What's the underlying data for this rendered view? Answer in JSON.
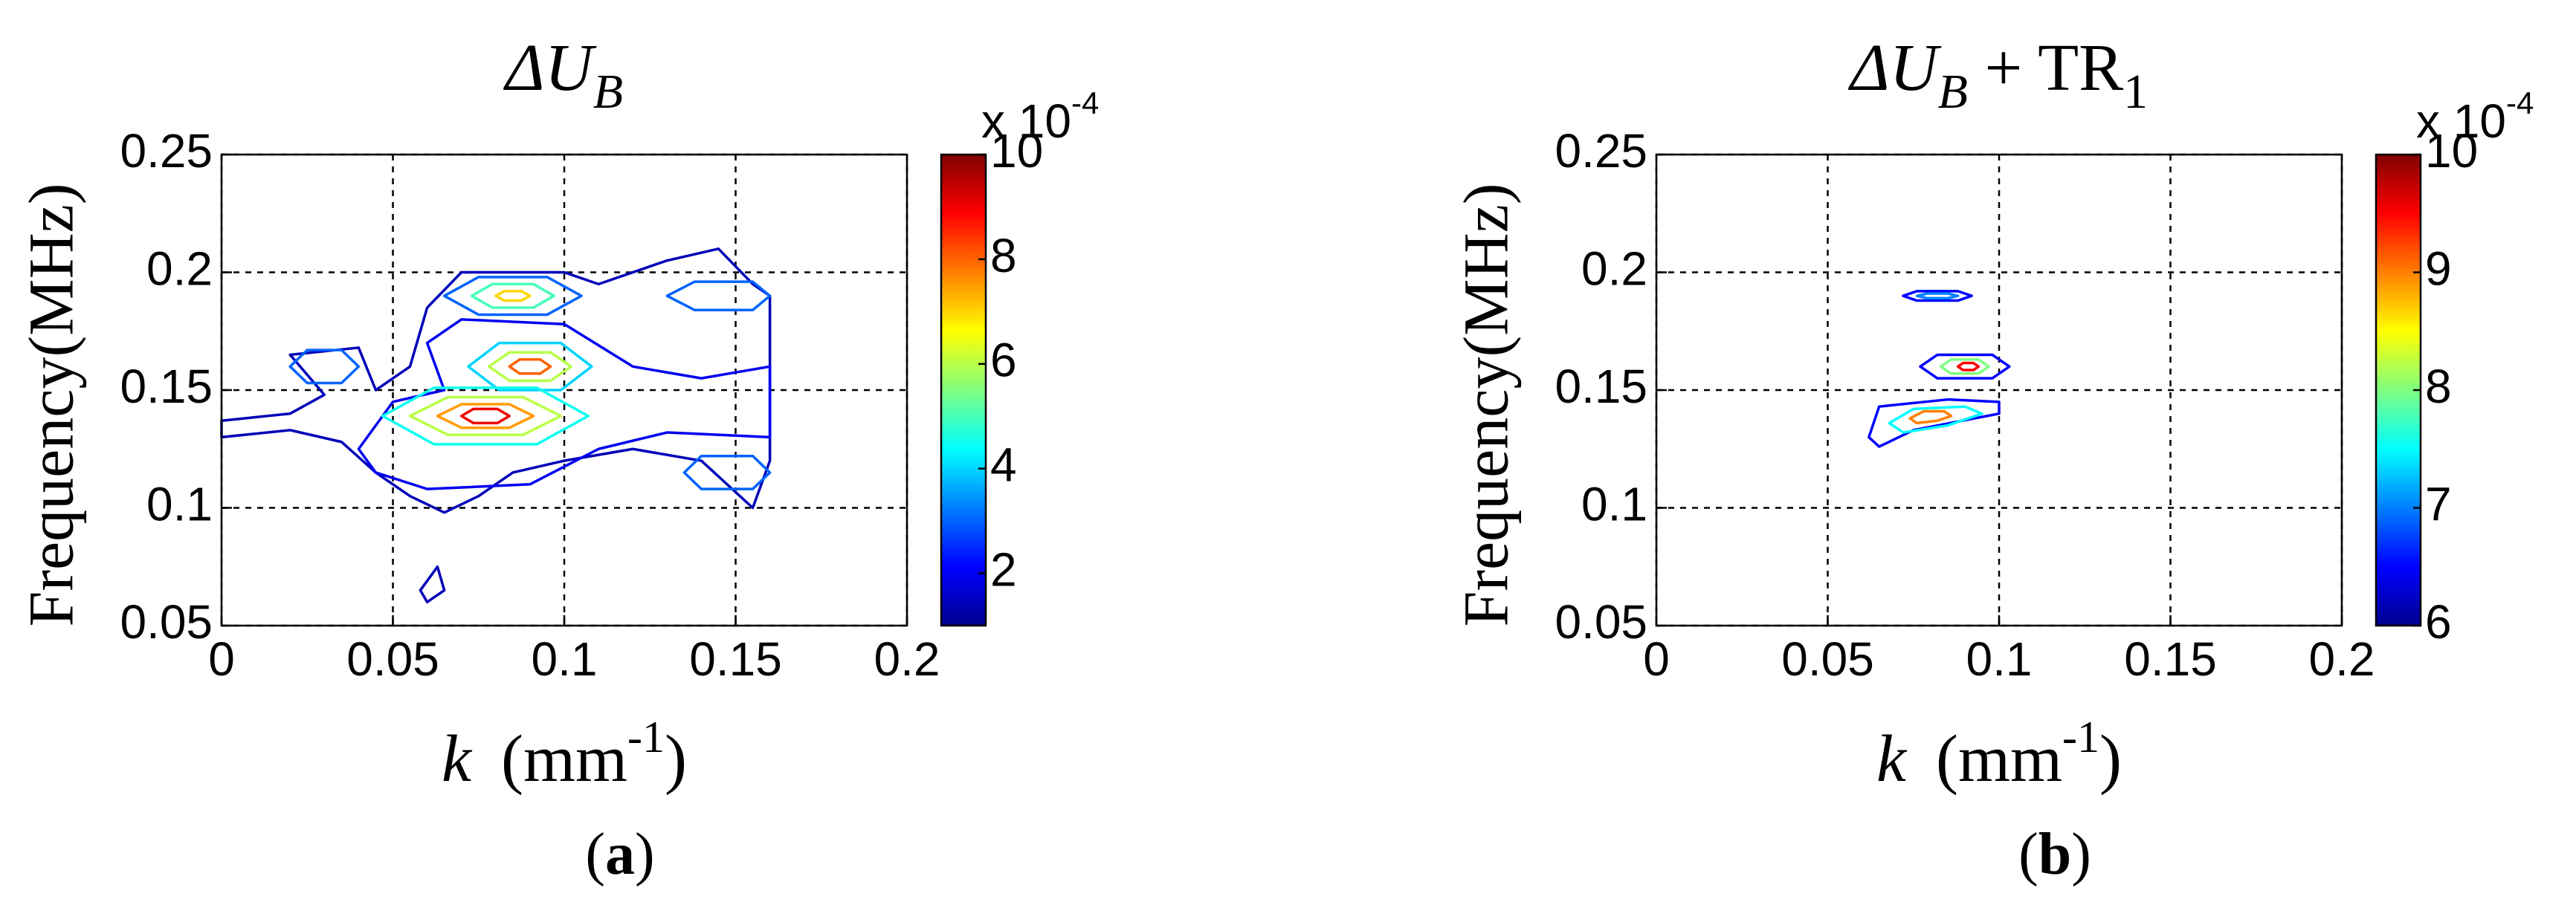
{
  "chart_data": [
    {
      "type": "contour",
      "panel_label": {
        "open": "(",
        "letter": "a",
        "close": ")"
      },
      "title": {
        "main": "ΔU",
        "sub": "B"
      },
      "xlabel": {
        "var": "k",
        "unit": "(mm",
        "exp": "-1",
        "close": ")"
      },
      "ylabel": "Frequency(MHz)",
      "xlim": [
        0,
        0.2
      ],
      "ylim": [
        0.05,
        0.25
      ],
      "xticks": [
        0,
        0.05,
        0.1,
        0.15,
        0.2
      ],
      "yticks": [
        0.05,
        0.1,
        0.15,
        0.2,
        0.25
      ],
      "grid": true,
      "colorbar": {
        "clim": [
          1,
          10
        ],
        "ticks": [
          2,
          4,
          6,
          8,
          10
        ],
        "multiplier": {
          "base": "x 10",
          "exp": "-4"
        }
      },
      "contours": [
        {
          "level": 1.5,
          "x": [
            0,
            0.02,
            0.03,
            0.02,
            0.04,
            0.045,
            0.055,
            0.06,
            0.07,
            0.1,
            0.11,
            0.13,
            0.145,
            0.155,
            0.16,
            0.16,
            0.155,
            0.14,
            0.12,
            0.1,
            0.085,
            0.075,
            0.065,
            0.055,
            0.045,
            0.035,
            0.02,
            0
          ],
          "y": [
            0.137,
            0.14,
            0.148,
            0.165,
            0.168,
            0.15,
            0.16,
            0.185,
            0.2,
            0.2,
            0.195,
            0.205,
            0.21,
            0.195,
            0.19,
            0.12,
            0.1,
            0.12,
            0.125,
            0.12,
            0.115,
            0.105,
            0.098,
            0.105,
            0.115,
            0.128,
            0.133,
            0.13
          ]
        },
        {
          "level": 1.5,
          "x": [
            0.06,
            0.065,
            0.063,
            0.058
          ],
          "y": [
            0.06,
            0.065,
            0.075,
            0.065
          ]
        },
        {
          "level": 2,
          "x": [
            0.04,
            0.05,
            0.065,
            0.06,
            0.07,
            0.1,
            0.12,
            0.14,
            0.16,
            0.16,
            0.13,
            0.11,
            0.09,
            0.06,
            0.045
          ],
          "y": [
            0.125,
            0.145,
            0.15,
            0.17,
            0.18,
            0.178,
            0.16,
            0.155,
            0.16,
            0.13,
            0.132,
            0.125,
            0.11,
            0.108,
            0.115
          ]
        },
        {
          "level": 3,
          "x": [
            0.02,
            0.025,
            0.035,
            0.04,
            0.035,
            0.025
          ],
          "y": [
            0.16,
            0.167,
            0.167,
            0.16,
            0.153,
            0.153
          ]
        },
        {
          "level": 3,
          "x": [
            0.135,
            0.14,
            0.155,
            0.16,
            0.155,
            0.14
          ],
          "y": [
            0.115,
            0.122,
            0.122,
            0.115,
            0.108,
            0.108
          ]
        },
        {
          "level": 3,
          "x": [
            0.13,
            0.138,
            0.155,
            0.16,
            0.155,
            0.138
          ],
          "y": [
            0.19,
            0.196,
            0.196,
            0.19,
            0.184,
            0.184
          ]
        },
        {
          "level": 3,
          "x": [
            0.065,
            0.075,
            0.095,
            0.105,
            0.095,
            0.075
          ],
          "y": [
            0.19,
            0.198,
            0.198,
            0.19,
            0.182,
            0.182
          ]
        },
        {
          "level": 5,
          "x": [
            0.073,
            0.079,
            0.091,
            0.097,
            0.091,
            0.079
          ],
          "y": [
            0.19,
            0.195,
            0.195,
            0.19,
            0.185,
            0.185
          ]
        },
        {
          "level": 7,
          "x": [
            0.08,
            0.0825,
            0.0875,
            0.09,
            0.0875,
            0.0825
          ],
          "y": [
            0.19,
            0.192,
            0.192,
            0.19,
            0.188,
            0.188
          ]
        },
        {
          "level": 4,
          "x": [
            0.072,
            0.081,
            0.099,
            0.108,
            0.099,
            0.081
          ],
          "y": [
            0.16,
            0.17,
            0.17,
            0.16,
            0.15,
            0.15
          ]
        },
        {
          "level": 6,
          "x": [
            0.078,
            0.084,
            0.096,
            0.102,
            0.096,
            0.084
          ],
          "y": [
            0.16,
            0.166,
            0.166,
            0.16,
            0.154,
            0.154
          ]
        },
        {
          "level": 8,
          "x": [
            0.084,
            0.087,
            0.093,
            0.096,
            0.093,
            0.087
          ],
          "y": [
            0.16,
            0.163,
            0.163,
            0.16,
            0.157,
            0.157
          ]
        },
        {
          "level": 4.5,
          "x": [
            0.047,
            0.062,
            0.092,
            0.107,
            0.092,
            0.062
          ],
          "y": [
            0.139,
            0.151,
            0.151,
            0.139,
            0.127,
            0.127
          ]
        },
        {
          "level": 6,
          "x": [
            0.055,
            0.066,
            0.088,
            0.099,
            0.088,
            0.066
          ],
          "y": [
            0.139,
            0.147,
            0.147,
            0.139,
            0.131,
            0.131
          ]
        },
        {
          "level": 7.5,
          "x": [
            0.063,
            0.07,
            0.084,
            0.091,
            0.084,
            0.07
          ],
          "y": [
            0.139,
            0.144,
            0.144,
            0.139,
            0.134,
            0.134
          ]
        },
        {
          "level": 9,
          "x": [
            0.07,
            0.0735,
            0.0805,
            0.084,
            0.0805,
            0.0735
          ],
          "y": [
            0.139,
            0.142,
            0.142,
            0.139,
            0.136,
            0.136
          ]
        }
      ]
    },
    {
      "type": "contour",
      "panel_label": {
        "open": "(",
        "letter": "b",
        "close": ")"
      },
      "title": {
        "main": "ΔU",
        "sub": "B",
        "suffix": " + TR",
        "suffix_sub": "1"
      },
      "xlabel": {
        "var": "k",
        "unit": "(mm",
        "exp": "-1",
        "close": ")"
      },
      "ylabel": "Frequency(MHz)",
      "xlim": [
        0,
        0.2
      ],
      "ylim": [
        0.05,
        0.25
      ],
      "xticks": [
        0,
        0.05,
        0.1,
        0.15,
        0.2
      ],
      "yticks": [
        0.05,
        0.1,
        0.15,
        0.2,
        0.25
      ],
      "grid": true,
      "colorbar": {
        "clim": [
          6,
          10
        ],
        "ticks": [
          6,
          7,
          8,
          9,
          10
        ],
        "multiplier": {
          "base": "x 10",
          "exp": "-4"
        }
      },
      "contours": [
        {
          "level": 6.5,
          "x": [
            0.062,
            0.065,
            0.085,
            0.1,
            0.1,
            0.075,
            0.065
          ],
          "y": [
            0.13,
            0.143,
            0.146,
            0.145,
            0.14,
            0.133,
            0.126
          ]
        },
        {
          "level": 7.5,
          "x": [
            0.068,
            0.075,
            0.09,
            0.095,
            0.085,
            0.072
          ],
          "y": [
            0.136,
            0.142,
            0.143,
            0.14,
            0.135,
            0.132
          ]
        },
        {
          "level": 9,
          "x": [
            0.074,
            0.078,
            0.084,
            0.086,
            0.082,
            0.076
          ],
          "y": [
            0.138,
            0.141,
            0.141,
            0.139,
            0.137,
            0.136
          ]
        },
        {
          "level": 6.5,
          "x": [
            0.077,
            0.082,
            0.098,
            0.103,
            0.098,
            0.082
          ],
          "y": [
            0.16,
            0.165,
            0.165,
            0.16,
            0.155,
            0.155
          ]
        },
        {
          "level": 8,
          "x": [
            0.083,
            0.086,
            0.094,
            0.097,
            0.094,
            0.086
          ],
          "y": [
            0.16,
            0.163,
            0.163,
            0.16,
            0.157,
            0.157
          ]
        },
        {
          "level": 9.5,
          "x": [
            0.088,
            0.0895,
            0.0925,
            0.094,
            0.0925,
            0.0895
          ],
          "y": [
            0.16,
            0.1615,
            0.1615,
            0.16,
            0.1585,
            0.1585
          ]
        },
        {
          "level": 6.5,
          "x": [
            0.072,
            0.076,
            0.088,
            0.092,
            0.088,
            0.076
          ],
          "y": [
            0.19,
            0.192,
            0.192,
            0.19,
            0.188,
            0.188
          ]
        },
        {
          "level": 7,
          "x": [
            0.076,
            0.079,
            0.085,
            0.088,
            0.085,
            0.079
          ],
          "y": [
            0.19,
            0.191,
            0.191,
            0.19,
            0.189,
            0.189
          ]
        }
      ]
    }
  ]
}
